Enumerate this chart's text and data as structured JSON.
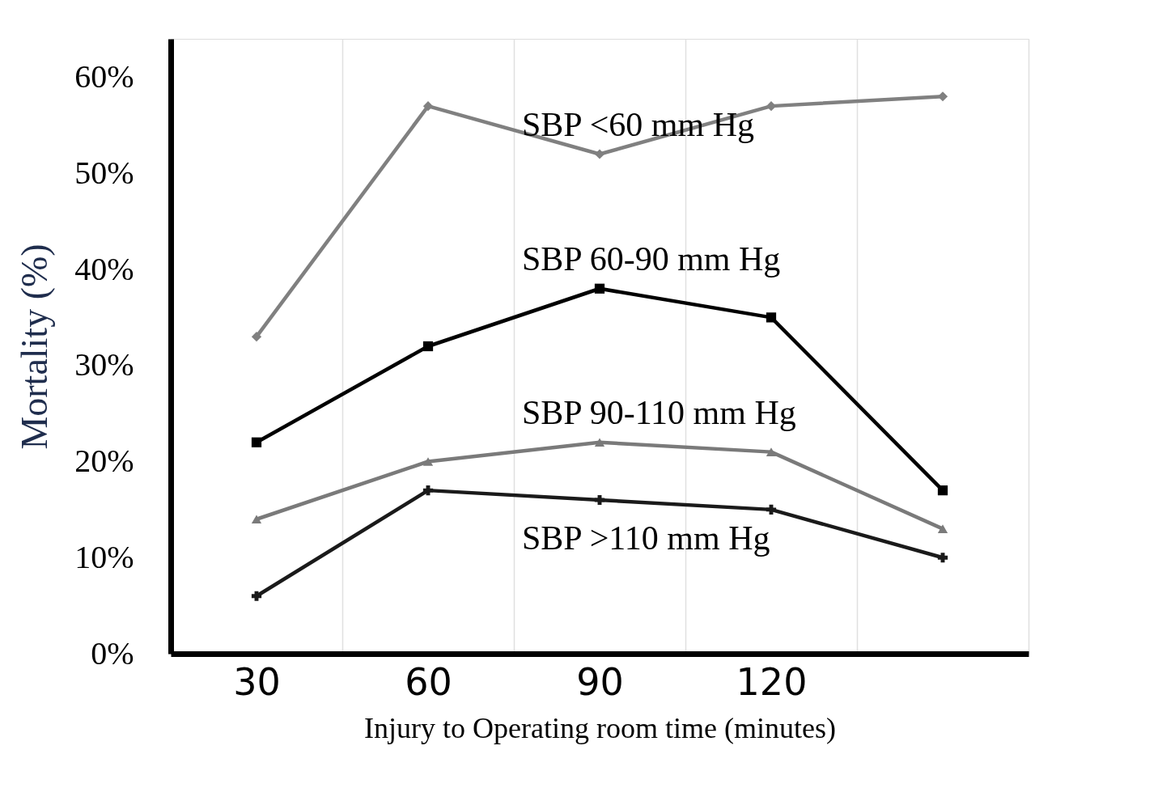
{
  "chart_data": {
    "type": "line",
    "xlabel": "Injury to Operating room time (minutes)",
    "ylabel": "Mortality (%)",
    "categories": [
      "30",
      "60",
      "90",
      "120",
      null
    ],
    "series": [
      {
        "name": "SBP <60 mm Hg",
        "color": "#808080",
        "marker": "diamond",
        "values": [
          33,
          57,
          52,
          57,
          58
        ]
      },
      {
        "name": "SBP 60-90 mm Hg",
        "color": "#000000",
        "marker": "square",
        "values": [
          22,
          32,
          38,
          35,
          17
        ]
      },
      {
        "name": "SBP 90-110 mm Hg",
        "color": "#7a7a7a",
        "marker": "triangle",
        "values": [
          14,
          20,
          22,
          21,
          13
        ]
      },
      {
        "name": "SBP >110 mm Hg",
        "color": "#1a1a1a",
        "marker": "cross",
        "values": [
          6,
          17,
          16,
          15,
          10
        ]
      }
    ],
    "ylim": [
      0,
      64
    ],
    "yticks": [
      {
        "value": 0,
        "label": "0%"
      },
      {
        "value": 10,
        "label": "10%"
      },
      {
        "value": 20,
        "label": "20%"
      },
      {
        "value": 30,
        "label": "30%"
      },
      {
        "value": 40,
        "label": "40%"
      },
      {
        "value": 50,
        "label": "50%"
      },
      {
        "value": 60,
        "label": "60%"
      }
    ],
    "grid": "x",
    "line_style": "solid"
  }
}
